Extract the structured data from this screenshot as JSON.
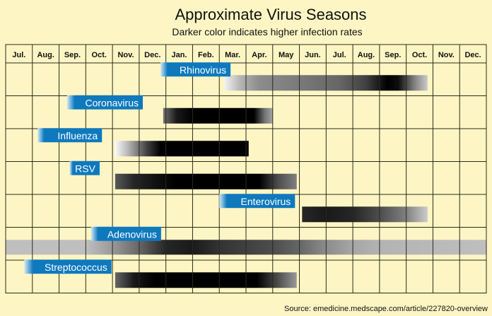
{
  "chart_data": {
    "type": "heatmap",
    "title": "Approximate Virus Seasons",
    "subtitle": "Darker color indicates higher infection rates",
    "months": [
      "Jul.",
      "Aug.",
      "Sep.",
      "Oct.",
      "Nov.",
      "Dec.",
      "Jan.",
      "Feb.",
      "Mar.",
      "Apr.",
      "May",
      "Jun.",
      "Jul.",
      "Aug.",
      "Sep.",
      "Oct.",
      "Nov.",
      "Dec."
    ],
    "series": [
      {
        "name": "Rhinovirus",
        "start": 8.2,
        "end": 15.8,
        "label_start": 5.8,
        "intensity": [
          [
            8.2,
            0.05
          ],
          [
            8.8,
            0.3
          ],
          [
            9.5,
            0.45
          ],
          [
            10.5,
            0.5
          ],
          [
            11.5,
            0.55
          ],
          [
            12.5,
            0.6
          ],
          [
            13.5,
            0.75
          ],
          [
            14.3,
            1.0
          ],
          [
            14.7,
            0.95
          ],
          [
            15.3,
            0.5
          ],
          [
            15.8,
            0.2
          ]
        ]
      },
      {
        "name": "Coronavirus",
        "start": 5.9,
        "end": 10.0,
        "label_start": 2.3,
        "intensity": [
          [
            5.9,
            0.55
          ],
          [
            6.4,
            0.9
          ],
          [
            7.0,
            1.0
          ],
          [
            9.3,
            1.0
          ],
          [
            9.7,
            0.55
          ],
          [
            10.0,
            0.35
          ]
        ]
      },
      {
        "name": "Influenza",
        "start": 4.1,
        "end": 9.1,
        "label_start": 1.2,
        "intensity": [
          [
            4.1,
            0.02
          ],
          [
            4.6,
            0.3
          ],
          [
            5.3,
            0.75
          ],
          [
            5.8,
            1.0
          ],
          [
            9.1,
            1.0
          ]
        ]
      },
      {
        "name": "RSV",
        "start": 4.1,
        "end": 10.9,
        "label_start": 2.4,
        "intensity": [
          [
            4.1,
            0.65
          ],
          [
            4.8,
            0.85
          ],
          [
            5.8,
            0.95
          ],
          [
            6.4,
            1.0
          ],
          [
            9.5,
            1.0
          ],
          [
            10.2,
            0.7
          ],
          [
            10.9,
            0.5
          ]
        ]
      },
      {
        "name": "Enterovirus",
        "start": 11.1,
        "end": 15.8,
        "label_start": 8.0,
        "intensity": [
          [
            11.1,
            0.85
          ],
          [
            12.0,
            0.9
          ],
          [
            13.0,
            0.85
          ],
          [
            14.0,
            0.7
          ],
          [
            15.0,
            0.5
          ],
          [
            15.8,
            0.2
          ]
        ]
      },
      {
        "name": "Adenovirus",
        "start": 0.0,
        "end": 18.0,
        "label_start": 3.2,
        "intensity": [
          [
            0,
            0.25
          ],
          [
            3.0,
            0.25
          ],
          [
            4.0,
            0.4
          ],
          [
            5.0,
            0.6
          ],
          [
            6.0,
            0.85
          ],
          [
            7.0,
            0.9
          ],
          [
            8.0,
            0.8
          ],
          [
            9.0,
            0.75
          ],
          [
            10.0,
            0.7
          ],
          [
            11.0,
            0.6
          ],
          [
            12.0,
            0.45
          ],
          [
            13.0,
            0.35
          ],
          [
            14.0,
            0.3
          ],
          [
            18.0,
            0.25
          ]
        ]
      },
      {
        "name": "Streptococcus",
        "start": 4.1,
        "end": 10.9,
        "label_start": 0.7,
        "intensity": [
          [
            4.1,
            0.6
          ],
          [
            4.8,
            0.9
          ],
          [
            5.6,
            1.0
          ],
          [
            9.4,
            1.0
          ],
          [
            10.2,
            0.7
          ],
          [
            10.9,
            0.4
          ]
        ]
      }
    ],
    "label_color": "#0e79bd",
    "grid_color": "#2a2a1a",
    "background": "#fdf6c4"
  },
  "source": "Source: emedicine.medscape.com/article/227820-overview"
}
